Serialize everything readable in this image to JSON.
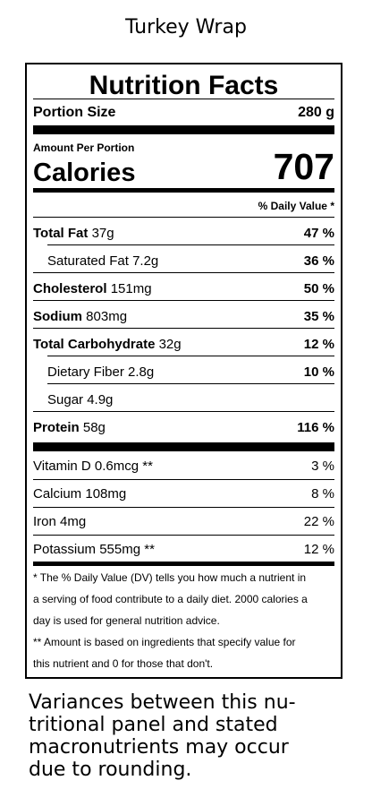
{
  "page_title": "Turkey Wrap",
  "label": {
    "heading": "Nutrition Facts",
    "portion_label": "Portion Size",
    "portion_value": "280 g",
    "amount_per_portion": "Amount Per Portion",
    "calories_label": "Calories",
    "calories_value": "707",
    "dv_header": "% Daily Value *",
    "nutrients": [
      {
        "name": "Total Fat",
        "amount": "37g",
        "dv": "47 %"
      },
      {
        "name": "Saturated Fat",
        "amount": "7.2g",
        "dv": "36 %"
      },
      {
        "name": "Cholesterol",
        "amount": "151mg",
        "dv": "50 %"
      },
      {
        "name": "Sodium",
        "amount": "803mg",
        "dv": "35 %"
      },
      {
        "name": "Total Carbohydrate",
        "amount": "32g",
        "dv": "12 %"
      },
      {
        "name": "Dietary Fiber",
        "amount": "2.8g",
        "dv": "10 %"
      },
      {
        "name": "Sugar",
        "amount": "4.9g",
        "dv": ""
      },
      {
        "name": "Protein",
        "amount": "58g",
        "dv": "116 %"
      }
    ],
    "vitamins": [
      {
        "name": "Vitamin D",
        "amount": "0.6mcg **",
        "dv": "3 %"
      },
      {
        "name": "Calcium",
        "amount": "108mg",
        "dv": "8 %"
      },
      {
        "name": "Iron",
        "amount": "4mg",
        "dv": "22 %"
      },
      {
        "name": "Potassium",
        "amount": "555mg **",
        "dv": "12 %"
      }
    ],
    "footnote_1_lines": [
      "* The % Daily Value (DV) tells you how much a nutrient in",
      "a serving of food contribute to a daily diet. 2000 calories a",
      "day is used for general nutrition advice."
    ],
    "footnote_2_lines": [
      "** Amount is based on ingredients that specify value for",
      "this nutrient and 0 for those that don't."
    ]
  },
  "disclaimer_lines": [
    "Variances between this nu-",
    "tritional panel and stated",
    "macronutrients may occur",
    "due to rounding."
  ]
}
